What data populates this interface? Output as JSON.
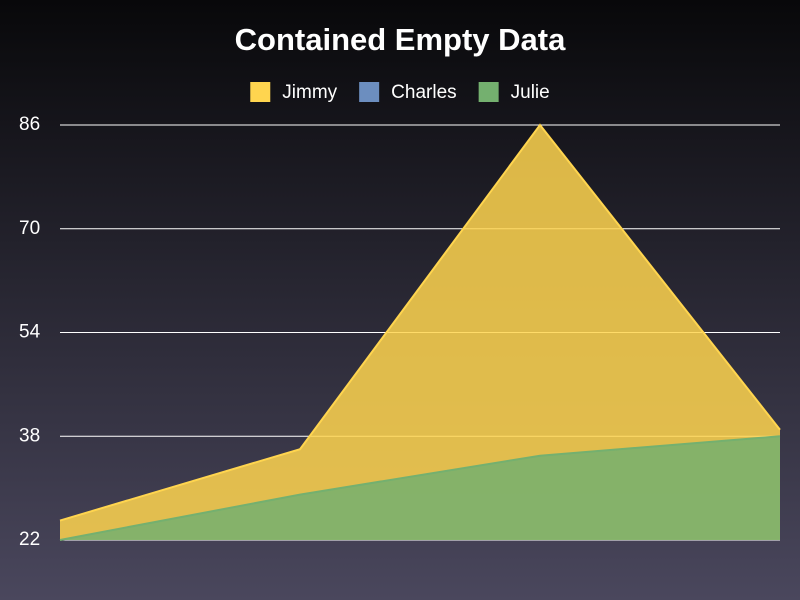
{
  "chart_data": {
    "type": "area",
    "title": "Contained Empty Data",
    "categories": [
      null,
      null,
      null,
      null
    ],
    "series": [
      {
        "name": "Jimmy",
        "color": "#ffd54f",
        "values": [
          25,
          36,
          86,
          39
        ]
      },
      {
        "name": "Charles",
        "color": "#6c8ebf",
        "values": [
          null,
          null,
          null,
          null
        ]
      },
      {
        "name": "Julie",
        "color": "#74b06f",
        "values": [
          22,
          29,
          35,
          38
        ]
      }
    ],
    "ylim": [
      22,
      86
    ],
    "yticks": [
      22,
      38,
      54,
      70,
      86
    ],
    "grid": true,
    "legend": "top"
  }
}
